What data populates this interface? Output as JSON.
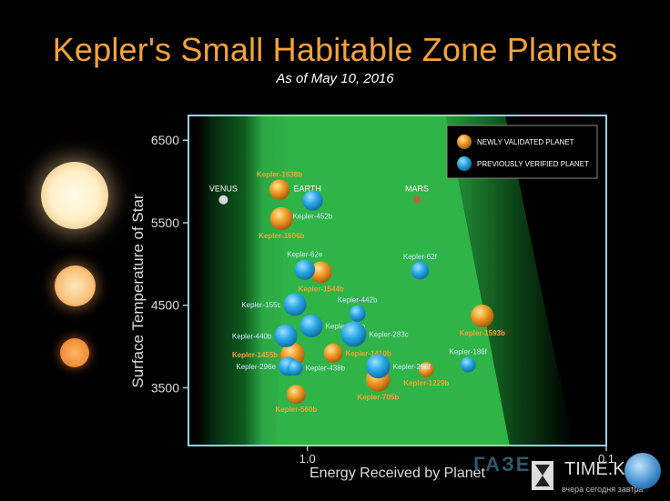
{
  "title": "Kepler's Small Habitable Zone Planets",
  "subtitle": "As of May 10, 2016",
  "watermark": "ГАЗЕ",
  "brand": {
    "name": "TIME.KG",
    "tagline": "вчера сегодня завтра"
  },
  "colors": {
    "new": "#f2a02a",
    "previous": "#29a8e6",
    "zone_edge": "#0b4a1a",
    "zone_core": "#33c04c",
    "accent_title": "#f4a23a"
  },
  "chart_data": {
    "type": "scatter",
    "title": "Kepler's Small Habitable Zone Planets",
    "subtitle": "As of May 10, 2016",
    "xlabel": "Energy Received by Planet",
    "ylabel": "Surface Temperature of Star",
    "x_scale": "log-reversed",
    "xlim": [
      2.5,
      0.1
    ],
    "ylim": [
      2800,
      6800
    ],
    "x_ticks": [
      {
        "value": 1.0,
        "label": "1.0"
      },
      {
        "value": 0.1,
        "label": "0.1"
      }
    ],
    "y_ticks": [
      {
        "value": 3500,
        "label": "3500"
      },
      {
        "value": 4500,
        "label": "4500"
      },
      {
        "value": 5500,
        "label": "5500"
      },
      {
        "value": 6500,
        "label": "6500"
      }
    ],
    "legend": {
      "position": "top-right",
      "entries": [
        {
          "label": "NEWLY VALIDATED PLANET",
          "group": "new"
        },
        {
          "label": "PREVIOUSLY VERIFIED PLANET",
          "group": "previous"
        }
      ]
    },
    "solar_system": [
      {
        "name": "VENUS",
        "x": 1.91,
        "y": 5778,
        "color": "#d8d8d8",
        "r": 5
      },
      {
        "name": "EARTH",
        "x": 1.0,
        "y": 5778,
        "color": "#5a74c8",
        "r": 6
      },
      {
        "name": "MARS",
        "x": 0.43,
        "y": 5778,
        "color": "#c0603c",
        "r": 4
      }
    ],
    "series": [
      {
        "name": "NEWLY VALIDATED PLANET",
        "group": "new",
        "points": [
          {
            "name": "Kepler-1638b",
            "x": 1.24,
            "y": 5900,
            "size": 1.6
          },
          {
            "name": "Kepler-1606b",
            "x": 1.22,
            "y": 5550,
            "size": 1.8
          },
          {
            "name": "Kepler-1544b",
            "x": 0.9,
            "y": 4900,
            "size": 1.7
          },
          {
            "name": "Kepler-1593b",
            "x": 0.26,
            "y": 4370,
            "size": 1.8
          },
          {
            "name": "Kepler-1455b",
            "x": 1.12,
            "y": 3900,
            "size": 1.9
          },
          {
            "name": "Kepler-1410b",
            "x": 0.82,
            "y": 3920,
            "size": 1.5
          },
          {
            "name": "Kepler-1229b",
            "x": 0.4,
            "y": 3720,
            "size": 1.2
          },
          {
            "name": "Kepler-705b",
            "x": 0.58,
            "y": 3600,
            "size": 1.9
          },
          {
            "name": "Kepler-560b",
            "x": 1.09,
            "y": 3420,
            "size": 1.5
          }
        ]
      },
      {
        "name": "PREVIOUSLY VERIFIED PLANET",
        "group": "previous",
        "points": [
          {
            "name": "Kepler-452b",
            "x": 0.96,
            "y": 5770,
            "size": 1.6
          },
          {
            "name": "Kepler-62e",
            "x": 1.02,
            "y": 4930,
            "size": 1.6
          },
          {
            "name": "Kepler-62f",
            "x": 0.42,
            "y": 4920,
            "size": 1.4
          },
          {
            "name": "Kepler-155c",
            "x": 1.1,
            "y": 4510,
            "size": 1.8
          },
          {
            "name": "Kepler-442b",
            "x": 0.68,
            "y": 4400,
            "size": 1.3
          },
          {
            "name": "Kepler-235e",
            "x": 0.97,
            "y": 4250,
            "size": 1.8
          },
          {
            "name": "Kepler-440b",
            "x": 1.18,
            "y": 4130,
            "size": 1.8
          },
          {
            "name": "Kepler-283c",
            "x": 0.7,
            "y": 4150,
            "size": 2.0
          },
          {
            "name": "Kepler-186f",
            "x": 0.29,
            "y": 3780,
            "size": 1.2
          },
          {
            "name": "Kepler-296f",
            "x": 0.58,
            "y": 3760,
            "size": 1.9
          },
          {
            "name": "Kepler-296e",
            "x": 1.16,
            "y": 3760,
            "size": 1.5
          },
          {
            "name": "Kepler-438b",
            "x": 1.1,
            "y": 3740,
            "size": 1.2
          }
        ]
      }
    ]
  }
}
